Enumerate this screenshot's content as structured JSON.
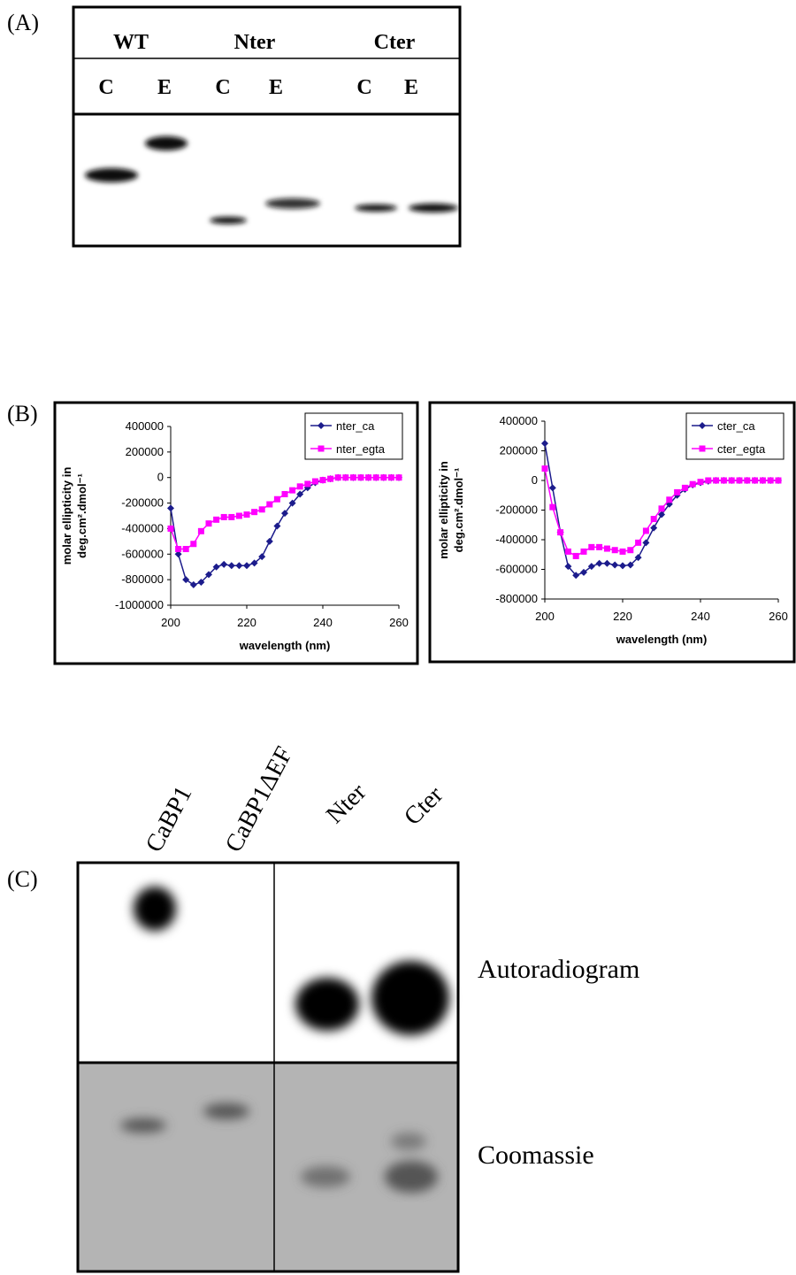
{
  "panel_a": {
    "label": "(A)",
    "groups": [
      "WT",
      "Nter",
      "Cter"
    ],
    "lanes": [
      "C",
      "E",
      "C",
      "E",
      "C",
      "E"
    ]
  },
  "panel_b": {
    "label": "(B)"
  },
  "chart_data": [
    {
      "type": "line",
      "xlabel": "wavelength (nm)",
      "ylabel": [
        "molar ellipticity in",
        "deg.cm².dmol⁻¹"
      ],
      "x": [
        200,
        202,
        204,
        206,
        208,
        210,
        212,
        214,
        216,
        218,
        220,
        222,
        224,
        226,
        228,
        230,
        232,
        234,
        236,
        238,
        240,
        242,
        244,
        246,
        248,
        250,
        252,
        254,
        256,
        258,
        260
      ],
      "xlim": [
        200,
        260
      ],
      "xticks": [
        200,
        220,
        240,
        260
      ],
      "ylim": [
        -1000000,
        400000
      ],
      "yticks": [
        -1000000,
        -800000,
        -600000,
        -400000,
        -200000,
        0,
        200000,
        400000
      ],
      "series": [
        {
          "name": "nter_ca",
          "color": "#1c1c8c",
          "marker": "diamond",
          "values": [
            -240000,
            -600000,
            -800000,
            -840000,
            -820000,
            -760000,
            -700000,
            -680000,
            -690000,
            -690000,
            -690000,
            -670000,
            -620000,
            -500000,
            -380000,
            -280000,
            -200000,
            -130000,
            -80000,
            -40000,
            -20000,
            -10000,
            0,
            0,
            0,
            0,
            0,
            0,
            0,
            0,
            0
          ]
        },
        {
          "name": "nter_egta",
          "color": "#ff00ff",
          "marker": "square",
          "values": [
            -400000,
            -560000,
            -560000,
            -520000,
            -420000,
            -360000,
            -330000,
            -310000,
            -310000,
            -300000,
            -290000,
            -270000,
            -250000,
            -210000,
            -170000,
            -130000,
            -100000,
            -70000,
            -50000,
            -30000,
            -20000,
            -10000,
            0,
            0,
            0,
            0,
            0,
            0,
            0,
            0,
            0
          ]
        }
      ]
    },
    {
      "type": "line",
      "xlabel": "wavelength (nm)",
      "ylabel": [
        "molar ellipticity in",
        "deg.cm².dmol⁻¹"
      ],
      "x": [
        200,
        202,
        204,
        206,
        208,
        210,
        212,
        214,
        216,
        218,
        220,
        222,
        224,
        226,
        228,
        230,
        232,
        234,
        236,
        238,
        240,
        242,
        244,
        246,
        248,
        250,
        252,
        254,
        256,
        258,
        260
      ],
      "xlim": [
        200,
        260
      ],
      "xticks": [
        200,
        220,
        240,
        260
      ],
      "ylim": [
        -800000,
        400000
      ],
      "yticks": [
        -800000,
        -600000,
        -400000,
        -200000,
        0,
        200000,
        400000
      ],
      "series": [
        {
          "name": "cter_ca",
          "color": "#1c1c8c",
          "marker": "diamond",
          "values": [
            250000,
            -50000,
            -350000,
            -580000,
            -640000,
            -620000,
            -580000,
            -560000,
            -560000,
            -570000,
            -575000,
            -570000,
            -520000,
            -420000,
            -320000,
            -230000,
            -160000,
            -100000,
            -60000,
            -30000,
            -15000,
            -5000,
            0,
            0,
            0,
            0,
            0,
            0,
            0,
            0,
            0
          ]
        },
        {
          "name": "cter_egta",
          "color": "#ff00ff",
          "marker": "square",
          "values": [
            80000,
            -180000,
            -350000,
            -480000,
            -510000,
            -480000,
            -450000,
            -450000,
            -460000,
            -470000,
            -480000,
            -470000,
            -420000,
            -340000,
            -260000,
            -190000,
            -130000,
            -80000,
            -50000,
            -25000,
            -10000,
            0,
            0,
            0,
            0,
            0,
            0,
            0,
            0,
            0,
            0
          ]
        }
      ]
    }
  ],
  "panel_c": {
    "label": "(C)",
    "lanes": [
      "CaBP1",
      "CaBP1ΔEF",
      "Nter",
      "Cter"
    ],
    "rows": [
      "Autoradiogram",
      "Coomassie"
    ]
  }
}
